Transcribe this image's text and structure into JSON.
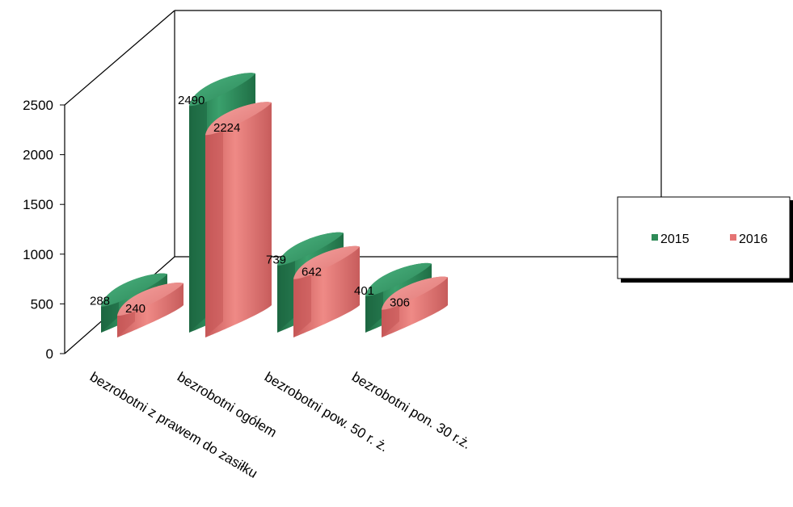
{
  "chart_data": {
    "type": "bar",
    "categories": [
      "bezrobotni z prawem do zasiłku",
      "bezrobotni ogółem",
      "bezrobotni pow. 50 r. ż.",
      "bezrobotni pon. 30 r.ż."
    ],
    "series": [
      {
        "name": "2015",
        "values": [
          288,
          2490,
          739,
          401
        ],
        "labels": [
          "288",
          "2490",
          "739",
          "401"
        ]
      },
      {
        "name": "2016",
        "values": [
          240,
          2224,
          642,
          306
        ],
        "labels": [
          "240",
          "2224",
          "642",
          "306"
        ]
      }
    ],
    "y_ticks": [
      "0",
      "500",
      "1000",
      "1500",
      "2000",
      "2500"
    ],
    "ylim": [
      0,
      2500
    ],
    "legend_position": "right",
    "colors": {
      "2015": "#2e8b57",
      "2016": "#e57373"
    }
  }
}
